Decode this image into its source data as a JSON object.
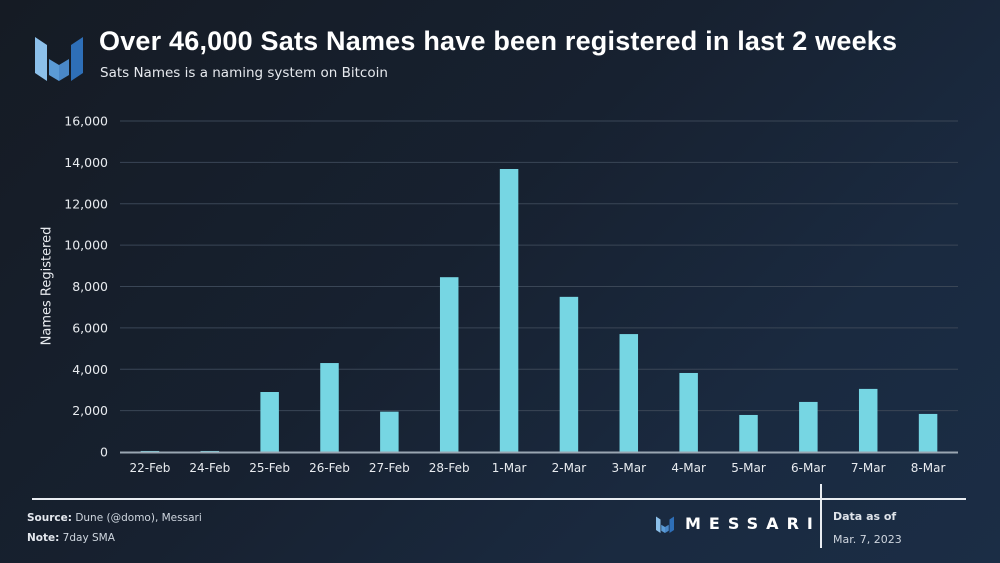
{
  "header": {
    "title": "Over 46,000 Sats Names have been registered in last 2 weeks",
    "subtitle": "Sats Names is a naming system on Bitcoin",
    "logo_icon": "messari-logo-icon"
  },
  "footer": {
    "source_label": "Source:",
    "source_value": " Dune (@domo), Messari",
    "note_label": "Note:",
    "note_value": " 7day SMA",
    "brand": "MESSARI",
    "data_as_of_label": "Data as of",
    "data_as_of_date": "Mar. 7, 2023"
  },
  "colors": {
    "bar": "#76d6e3",
    "gridline": "#3a4656",
    "axis": "#9aa6b2",
    "background_start": "#151b24",
    "background_end": "#1b2d45",
    "logo_light": "#8cc0ea",
    "logo_mid": "#5b9bd6",
    "logo_dark": "#2e6fb8"
  },
  "chart_data": {
    "type": "bar",
    "title": "Over 46,000 Sats Names have been registered in last 2 weeks",
    "subtitle": "Sats Names is a naming system on Bitcoin",
    "xlabel": "",
    "ylabel": "Names Registered",
    "categories": [
      "22-Feb",
      "24-Feb",
      "25-Feb",
      "26-Feb",
      "27-Feb",
      "28-Feb",
      "1-Mar",
      "2-Mar",
      "3-Mar",
      "4-Mar",
      "5-Mar",
      "6-Mar",
      "7-Mar",
      "8-Mar"
    ],
    "values": [
      50,
      50,
      2900,
      4300,
      1950,
      8450,
      13680,
      7500,
      5700,
      3820,
      1790,
      2420,
      3050,
      1840
    ],
    "ylim": [
      0,
      16000
    ],
    "yticks": [
      0,
      2000,
      4000,
      6000,
      8000,
      10000,
      12000,
      14000,
      16000
    ],
    "ytick_labels": [
      "0",
      "2,000",
      "4,000",
      "6,000",
      "8,000",
      "10,000",
      "12,000",
      "14,000",
      "16,000"
    ],
    "grid": true,
    "legend": null,
    "note": "7day SMA"
  }
}
